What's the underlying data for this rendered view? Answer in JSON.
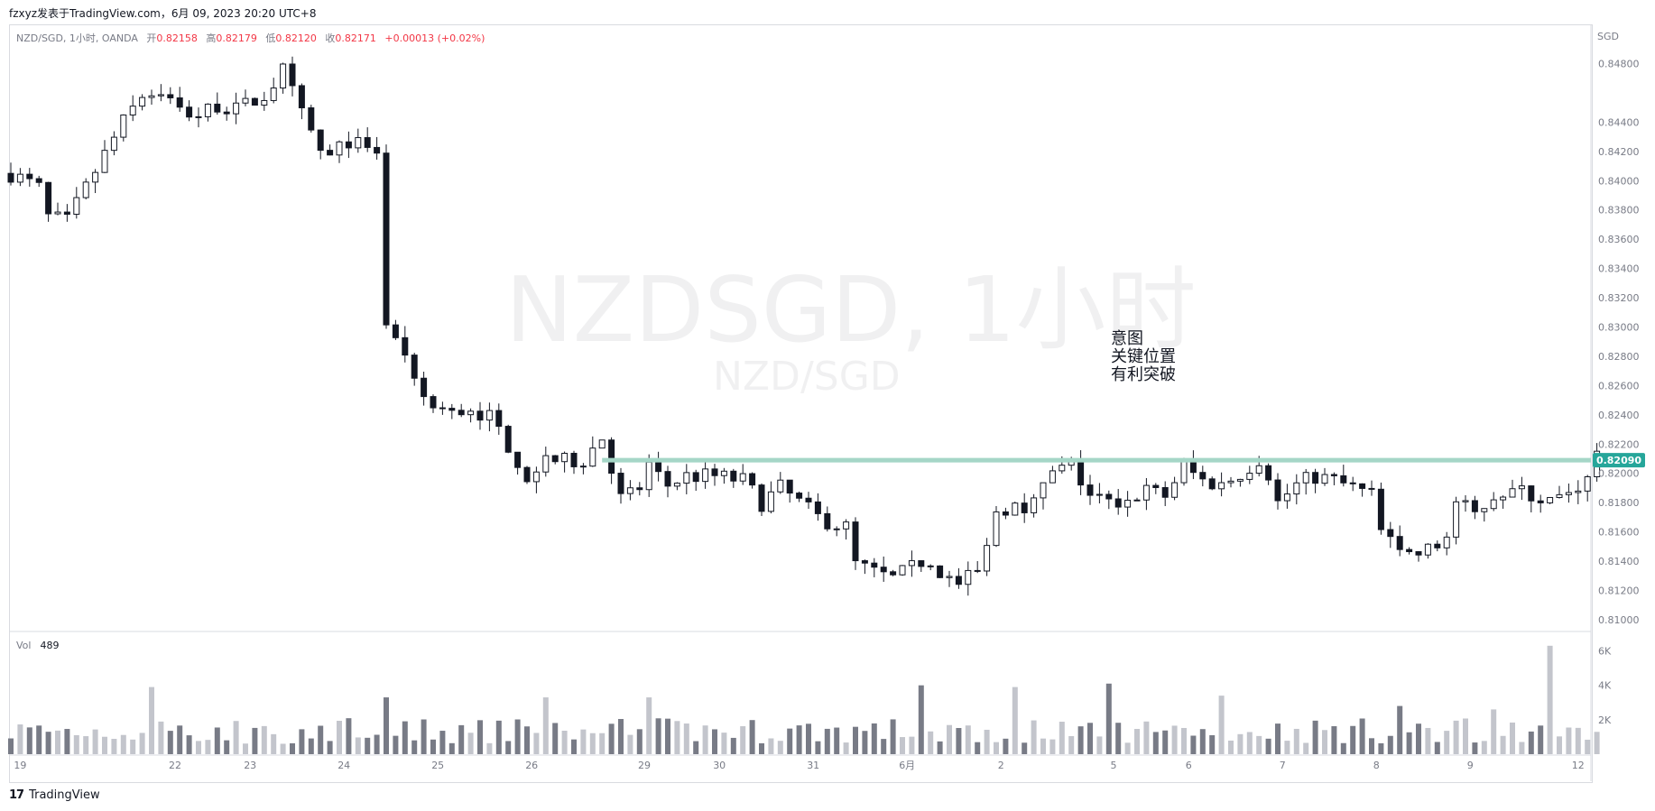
{
  "header": {
    "publisher_line": "fzxyz发表于TradingView.com，6月 09, 2023 20:20 UTC+8"
  },
  "legend": {
    "symbol": "NZD/SGD, 1小时, OANDA",
    "open_label": "开",
    "open": "0.82158",
    "high_label": "高",
    "high": "0.82179",
    "low_label": "低",
    "low": "0.82120",
    "close_label": "收",
    "close": "0.82171",
    "change": "+0.00013 (+0.02%)"
  },
  "currency": "SGD",
  "watermark": {
    "main": "NZDSGD, 1小时",
    "sub": "NZD/SGD"
  },
  "annotation": {
    "lines": [
      "意图",
      "关键位置",
      "有利突破"
    ]
  },
  "volume_legend": {
    "label": "Vol",
    "value": "489"
  },
  "footer": {
    "brand": "TradingView",
    "logo_icon": "tradingview-logo-icon"
  },
  "colors": {
    "up": "#ffffff",
    "down": "#131722",
    "level_line": "#a5d6c7",
    "price_badge": "#26a69a",
    "legend_values": "#f23645",
    "volume_up": "#c3c5cc",
    "volume_down": "#787b86"
  },
  "chart_data": {
    "type": "candlestick",
    "y_axis": {
      "ticks": [
        0.848,
        0.844,
        0.842,
        0.84,
        0.838,
        0.836,
        0.834,
        0.832,
        0.83,
        0.828,
        0.826,
        0.824,
        0.822,
        0.82,
        0.818,
        0.816,
        0.814,
        0.812,
        0.81
      ],
      "tick_labels": [
        "0.84800",
        "0.84400",
        "0.84200",
        "0.84000",
        "0.83800",
        "0.83600",
        "0.83400",
        "0.83200",
        "0.83000",
        "0.82800",
        "0.82600",
        "0.82400",
        "0.82200",
        "0.82000",
        "0.81800",
        "0.81600",
        "0.81400",
        "0.81200",
        "0.81000"
      ],
      "ylim": [
        0.8095,
        0.8505
      ]
    },
    "x_axis": {
      "tick_labels": [
        "19",
        "22",
        "23",
        "24",
        "25",
        "26",
        "29",
        "30",
        "31",
        "6月",
        "2",
        "5",
        "6",
        "7",
        "8",
        "9",
        "12"
      ],
      "tick_positions": [
        1,
        17.5,
        25.5,
        35.5,
        45.5,
        55.5,
        67.5,
        75.5,
        85.5,
        95.5,
        105.5,
        117.5,
        125.5,
        135.5,
        145.5,
        155.5,
        167
      ]
    },
    "current_price": {
      "value": 0.8209,
      "label": "0.82090"
    },
    "horizontal_level": 0.8209,
    "anchors": [
      [
        0,
        0.8405
      ],
      [
        3,
        0.8395
      ],
      [
        4,
        0.8375
      ],
      [
        6,
        0.8372
      ],
      [
        8,
        0.8395
      ],
      [
        10,
        0.8418
      ],
      [
        12,
        0.844
      ],
      [
        14,
        0.8458
      ],
      [
        16,
        0.8462
      ],
      [
        18,
        0.8448
      ],
      [
        20,
        0.8445
      ],
      [
        22,
        0.8452
      ],
      [
        24,
        0.8448
      ],
      [
        27,
        0.8458
      ],
      [
        29,
        0.8475
      ],
      [
        31,
        0.8445
      ],
      [
        33,
        0.842
      ],
      [
        34,
        0.8415
      ],
      [
        36,
        0.8428
      ],
      [
        38,
        0.842
      ],
      [
        39.5,
        0.842
      ],
      [
        40,
        0.83
      ],
      [
        41,
        0.829
      ],
      [
        43,
        0.826
      ],
      [
        45,
        0.8245
      ],
      [
        47,
        0.824
      ],
      [
        49,
        0.8245
      ],
      [
        51,
        0.8238
      ],
      [
        53,
        0.822
      ],
      [
        55,
        0.8198
      ],
      [
        57,
        0.821
      ],
      [
        59,
        0.8208
      ],
      [
        61,
        0.821
      ],
      [
        63,
        0.8225
      ],
      [
        64,
        0.8205
      ],
      [
        65,
        0.8183
      ],
      [
        67,
        0.819
      ],
      [
        68,
        0.8205
      ],
      [
        70,
        0.8192
      ],
      [
        72,
        0.8198
      ],
      [
        75,
        0.8198
      ],
      [
        78,
        0.8195
      ],
      [
        80,
        0.818
      ],
      [
        82,
        0.819
      ],
      [
        84,
        0.818
      ],
      [
        86,
        0.817
      ],
      [
        88,
        0.8165
      ],
      [
        89.5,
        0.8162
      ],
      [
        90,
        0.8138
      ],
      [
        92,
        0.8132
      ],
      [
        94,
        0.8128
      ],
      [
        96,
        0.8135
      ],
      [
        97,
        0.814
      ],
      [
        99,
        0.8132
      ],
      [
        101,
        0.8124
      ],
      [
        103,
        0.8132
      ],
      [
        104,
        0.8148
      ],
      [
        105,
        0.8175
      ],
      [
        107,
        0.8178
      ],
      [
        109,
        0.818
      ],
      [
        111,
        0.82
      ],
      [
        113,
        0.8205
      ],
      [
        115,
        0.8185
      ],
      [
        117,
        0.818
      ],
      [
        119,
        0.8182
      ],
      [
        121,
        0.8188
      ],
      [
        123,
        0.8185
      ],
      [
        125,
        0.8205
      ],
      [
        127,
        0.8195
      ],
      [
        129,
        0.8192
      ],
      [
        131,
        0.82
      ],
      [
        133,
        0.821
      ],
      [
        134,
        0.82
      ],
      [
        135,
        0.818
      ],
      [
        137,
        0.8192
      ],
      [
        139,
        0.8198
      ],
      [
        141,
        0.8195
      ],
      [
        143,
        0.819
      ],
      [
        145,
        0.8185
      ],
      [
        146,
        0.816
      ],
      [
        148,
        0.8145
      ],
      [
        150,
        0.8145
      ],
      [
        152,
        0.815
      ],
      [
        153,
        0.8158
      ],
      [
        154,
        0.818
      ],
      [
        156,
        0.8172
      ],
      [
        158,
        0.8185
      ],
      [
        160,
        0.8188
      ],
      [
        162,
        0.8185
      ],
      [
        164,
        0.818
      ],
      [
        166,
        0.8188
      ],
      [
        167,
        0.8192
      ],
      [
        168,
        0.8195
      ],
      [
        169,
        0.8217
      ]
    ],
    "volume": {
      "axis_ticks": [
        2000,
        4000,
        6000
      ],
      "axis_labels": [
        "2K",
        "4K",
        "6K"
      ],
      "max": 6500,
      "spikes": [
        [
          15,
          3900
        ],
        [
          40,
          3300
        ],
        [
          57,
          3300
        ],
        [
          68,
          3300
        ],
        [
          97,
          4000
        ],
        [
          107,
          3900
        ],
        [
          117,
          4100
        ],
        [
          129,
          3400
        ],
        [
          148,
          2800
        ],
        [
          158,
          2600
        ],
        [
          164,
          6300
        ]
      ]
    }
  }
}
